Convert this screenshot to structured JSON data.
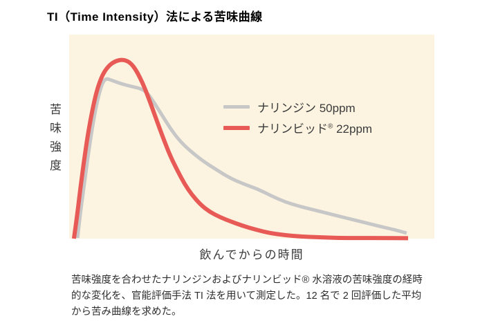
{
  "title": "TI（Time Intensity）法による苦味曲線",
  "colors": {
    "plot_background": "#FCF4E1",
    "naringin_gray": "#C7C7C7",
    "narinbid_red": "#E85A55",
    "title_text": "#000000",
    "label_text": "#3A3A3A",
    "caption_text": "#2E2E2E"
  },
  "axes": {
    "y_label": "苦味強度",
    "x_label": "飲んでからの時間"
  },
  "legend": {
    "items": [
      {
        "pre": "ナリンジン 50ppm",
        "sup": "",
        "post": ""
      },
      {
        "pre": "ナリンビッド",
        "sup": "®",
        "post": " 22ppm"
      }
    ]
  },
  "caption_lines": [
    "苦味強度を合わせたナリンジンおよびナリンビッド® 水溶液の苦味強度の経時",
    "的な変化を、官能評価手法 TI 法を用いて測定した。12 名で 2 回評価した平均",
    "から苦み曲線を求めた。"
  ],
  "chart_data": {
    "type": "line",
    "title": "TI（Time Intensity）法による苦味曲線",
    "xlabel": "飲んでからの時間",
    "ylabel": "苦味強度",
    "xlim": [
      0,
      100
    ],
    "ylim": [
      0,
      100
    ],
    "x_unit": "relative time after drinking (no numeric ticks shown)",
    "y_unit": "relative bitterness intensity (no numeric ticks shown)",
    "grid": false,
    "legend_position": "inside-right",
    "plot_background": "#FCF4E1",
    "series": [
      {
        "name": "ナリンジン 50ppm",
        "data_name": "series-naringin-line",
        "color": "#C7C7C7",
        "stroke_width": 5,
        "points": [
          [
            2.3,
            0.3
          ],
          [
            3.0,
            11.9
          ],
          [
            4.0,
            24.7
          ],
          [
            5.1,
            39.7
          ],
          [
            6.3,
            54.2
          ],
          [
            7.6,
            66.8
          ],
          [
            8.9,
            75.6
          ],
          [
            10.0,
            78.6
          ],
          [
            11.7,
            77.6
          ],
          [
            14.2,
            75.9
          ],
          [
            17.0,
            74.6
          ],
          [
            19.5,
            73.6
          ],
          [
            21.2,
            71.9
          ],
          [
            23.1,
            67.1
          ],
          [
            25.6,
            60.0
          ],
          [
            28.0,
            53.2
          ],
          [
            30.5,
            47.5
          ],
          [
            33.1,
            43.1
          ],
          [
            36.4,
            38.3
          ],
          [
            40.2,
            33.9
          ],
          [
            43.9,
            29.8
          ],
          [
            47.7,
            26.8
          ],
          [
            51.5,
            24.4
          ],
          [
            55.3,
            21.0
          ],
          [
            59.1,
            18.0
          ],
          [
            62.9,
            15.9
          ],
          [
            66.7,
            14.2
          ],
          [
            70.5,
            12.5
          ],
          [
            74.2,
            10.8
          ],
          [
            78.0,
            9.2
          ],
          [
            81.8,
            7.5
          ],
          [
            85.6,
            5.8
          ],
          [
            89.0,
            4.4
          ],
          [
            92.4,
            2.7
          ]
        ]
      },
      {
        "name": "ナリンビッド® 22ppm",
        "data_name": "series-narinbid-line",
        "color": "#E85A55",
        "stroke_width": 6,
        "points": [
          [
            1.3,
            0.0
          ],
          [
            2.1,
            10.2
          ],
          [
            3.0,
            23.7
          ],
          [
            4.0,
            37.3
          ],
          [
            5.1,
            50.8
          ],
          [
            6.3,
            62.7
          ],
          [
            7.6,
            72.9
          ],
          [
            9.1,
            80.3
          ],
          [
            10.8,
            84.7
          ],
          [
            12.7,
            87.1
          ],
          [
            14.8,
            87.8
          ],
          [
            16.7,
            86.4
          ],
          [
            18.4,
            82.4
          ],
          [
            20.3,
            75.6
          ],
          [
            22.2,
            66.8
          ],
          [
            24.1,
            57.3
          ],
          [
            25.9,
            48.5
          ],
          [
            27.8,
            40.0
          ],
          [
            29.7,
            33.2
          ],
          [
            31.6,
            26.8
          ],
          [
            33.5,
            21.7
          ],
          [
            36.0,
            16.6
          ],
          [
            38.4,
            13.2
          ],
          [
            41.3,
            10.5
          ],
          [
            44.1,
            8.5
          ],
          [
            47.3,
            6.4
          ],
          [
            51.1,
            4.4
          ],
          [
            54.9,
            2.7
          ],
          [
            59.1,
            1.7
          ],
          [
            63.4,
            1.0
          ],
          [
            68.2,
            0.7
          ],
          [
            73.9,
            0.3
          ],
          [
            79.5,
            0.3
          ],
          [
            86.2,
            0.3
          ],
          [
            92.8,
            0.2
          ]
        ]
      }
    ]
  }
}
